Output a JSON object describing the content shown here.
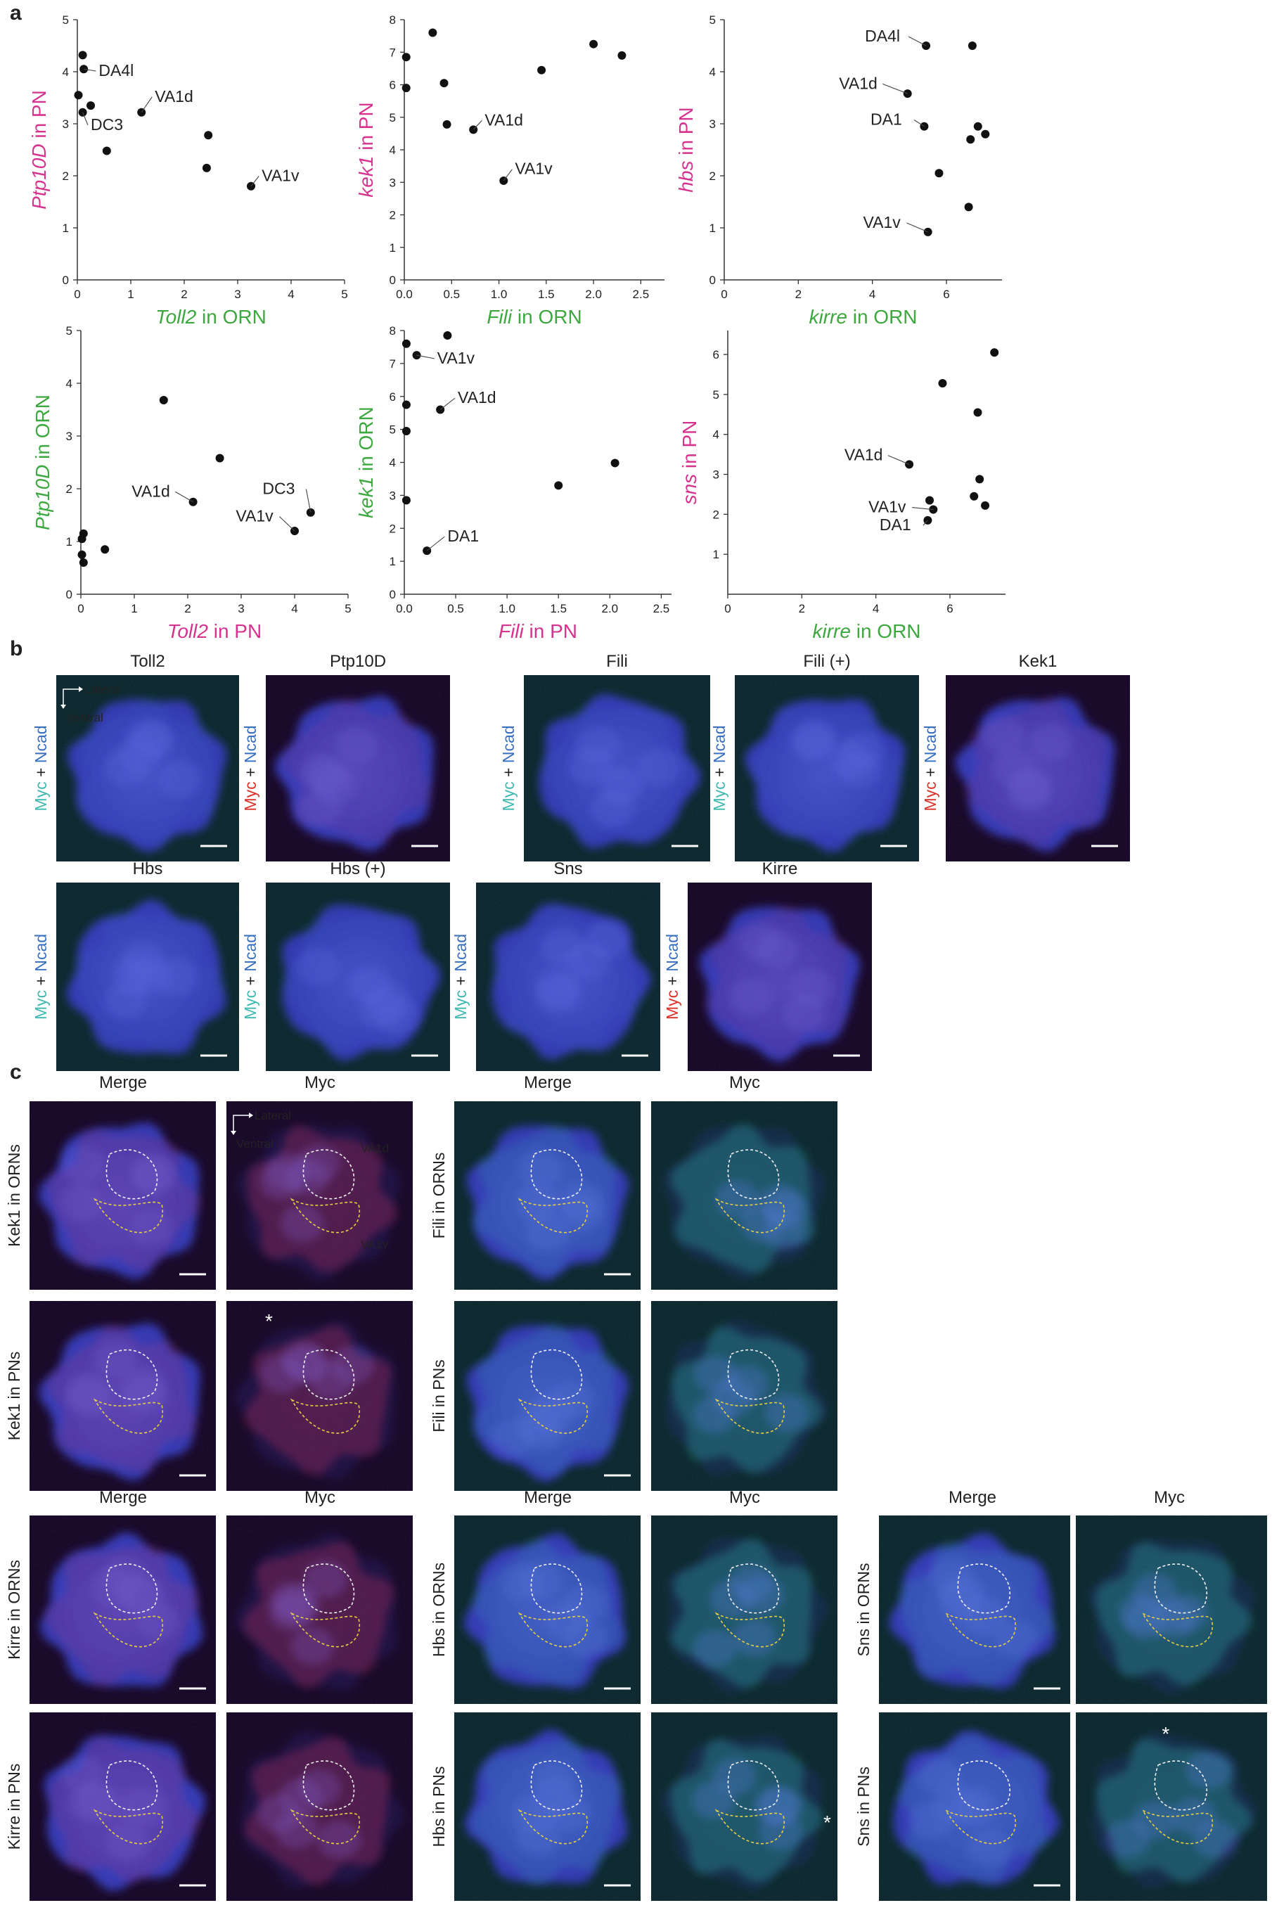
{
  "panels": {
    "a": "a",
    "b": "b",
    "c": "c"
  },
  "colors": {
    "pn": "#d6338f",
    "orn": "#3da83f",
    "myc_cyan": "#3fb8b0",
    "myc_red": "#d8322a",
    "ncad": "#3a6fbf",
    "dark": "#222222"
  },
  "scatter_plots": [
    {
      "id": "toll2-orn-ptp10d-pn",
      "xlabel": {
        "gene": "Toll2",
        "suffix": " in ORN",
        "color": "orn"
      },
      "ylabel": {
        "gene": "Ptp10D",
        "suffix": " in PN",
        "color": "pn"
      },
      "xlim": [
        0,
        5
      ],
      "ylim": [
        0,
        5
      ],
      "xticks": [
        "0",
        "1",
        "2",
        "3",
        "4",
        "5"
      ],
      "yticks": [
        "0",
        "1",
        "2",
        "3",
        "4",
        "5"
      ],
      "points": [
        [
          0.1,
          4.32
        ],
        [
          0.12,
          4.05
        ],
        [
          0.02,
          3.55
        ],
        [
          0.25,
          3.35
        ],
        [
          0.1,
          3.22
        ],
        [
          1.2,
          3.22
        ],
        [
          0.55,
          2.48
        ],
        [
          2.45,
          2.78
        ],
        [
          2.42,
          2.15
        ],
        [
          3.25,
          1.8
        ]
      ],
      "labels": [
        {
          "text": "DA4l",
          "pt": 1,
          "tx": 0.4,
          "ty": 3.92
        },
        {
          "text": "VA1d",
          "pt": 5,
          "tx": 1.45,
          "ty": 3.42
        },
        {
          "text": "DC3",
          "pt": 4,
          "tx": 0.25,
          "ty": 2.88
        },
        {
          "text": "VA1v",
          "pt": 9,
          "tx": 3.45,
          "ty": 1.9
        }
      ]
    },
    {
      "id": "fili-orn-kek1-pn",
      "xlabel": {
        "gene": "Fili",
        "suffix": " in ORN",
        "color": "orn"
      },
      "ylabel": {
        "gene": "kek1",
        "suffix": " in PN",
        "color": "pn"
      },
      "xlim": [
        0,
        2.75
      ],
      "ylim": [
        0,
        8
      ],
      "xticks": [
        "0.0",
        "0.5",
        "1.0",
        "1.5",
        "2.0",
        "2.5"
      ],
      "yticks": [
        "0",
        "1",
        "2",
        "3",
        "4",
        "5",
        "6",
        "7",
        "8"
      ],
      "points": [
        [
          0.02,
          6.85
        ],
        [
          0.3,
          7.6
        ],
        [
          0.02,
          5.9
        ],
        [
          0.42,
          6.05
        ],
        [
          0.45,
          4.78
        ],
        [
          0.73,
          4.62
        ],
        [
          1.45,
          6.45
        ],
        [
          2.0,
          7.25
        ],
        [
          2.3,
          6.9
        ],
        [
          1.05,
          3.05
        ]
      ],
      "labels": [
        {
          "text": "VA1d",
          "pt": 5,
          "tx": 0.85,
          "ty": 4.75
        },
        {
          "text": "VA1v",
          "pt": 9,
          "tx": 1.17,
          "ty": 3.25
        }
      ]
    },
    {
      "id": "kirre-orn-hbs-pn",
      "xlabel": {
        "gene": "kirre",
        "suffix": " in ORN",
        "color": "orn"
      },
      "ylabel": {
        "gene": "hbs",
        "suffix": " in PN",
        "color": "pn"
      },
      "xlim": [
        0,
        7.5
      ],
      "ylim": [
        0,
        5
      ],
      "xticks": [
        "0",
        "2",
        "4",
        "6"
      ],
      "yticks": [
        "0",
        "1",
        "2",
        "3",
        "4",
        "5"
      ],
      "points": [
        [
          5.45,
          4.5
        ],
        [
          6.7,
          4.5
        ],
        [
          4.95,
          3.58
        ],
        [
          5.4,
          2.95
        ],
        [
          6.85,
          2.95
        ],
        [
          7.05,
          2.8
        ],
        [
          6.65,
          2.7
        ],
        [
          5.8,
          2.05
        ],
        [
          6.6,
          1.4
        ],
        [
          5.5,
          0.92
        ]
      ],
      "labels": [
        {
          "text": "DA4l",
          "pt": 0,
          "tx": 3.8,
          "ty": 4.58
        },
        {
          "text": "VA1d",
          "pt": 2,
          "tx": 3.1,
          "ty": 3.67
        },
        {
          "text": "DA1",
          "pt": 3,
          "tx": 3.95,
          "ty": 2.98
        },
        {
          "text": "VA1v",
          "pt": 9,
          "tx": 3.75,
          "ty": 1.0
        }
      ]
    },
    {
      "id": "toll2-pn-ptp10d-orn",
      "xlabel": {
        "gene": "Toll2",
        "suffix": " in PN",
        "color": "pn"
      },
      "ylabel": {
        "gene": "Ptp10D",
        "suffix": " in ORN",
        "color": "orn"
      },
      "xlim": [
        0,
        5
      ],
      "ylim": [
        0,
        5
      ],
      "xticks": [
        "0",
        "1",
        "2",
        "3",
        "4",
        "5"
      ],
      "yticks": [
        "0",
        "1",
        "2",
        "3",
        "4",
        "5"
      ],
      "points": [
        [
          1.55,
          3.68
        ],
        [
          2.6,
          2.58
        ],
        [
          2.1,
          1.75
        ],
        [
          4.3,
          1.55
        ],
        [
          4.0,
          1.2
        ],
        [
          0.02,
          1.05
        ],
        [
          0.05,
          1.15
        ],
        [
          0.45,
          0.85
        ],
        [
          0.02,
          0.75
        ],
        [
          0.05,
          0.6
        ]
      ],
      "labels": [
        {
          "text": "VA1d",
          "pt": 2,
          "tx": 0.95,
          "ty": 1.85
        },
        {
          "text": "DC3",
          "pt": 3,
          "tx": 3.4,
          "ty": 1.9
        },
        {
          "text": "VA1v",
          "pt": 4,
          "tx": 2.9,
          "ty": 1.38
        }
      ]
    },
    {
      "id": "fili-pn-kek1-orn",
      "xlabel": {
        "gene": "Fili",
        "suffix": " in PN",
        "color": "pn"
      },
      "ylabel": {
        "gene": "kek1",
        "suffix": " in ORN",
        "color": "orn"
      },
      "xlim": [
        0,
        2.6
      ],
      "ylim": [
        0,
        8
      ],
      "xticks": [
        "0.0",
        "0.5",
        "1.0",
        "1.5",
        "2.0",
        "2.5"
      ],
      "yticks": [
        "0",
        "1",
        "2",
        "3",
        "4",
        "5",
        "6",
        "7",
        "8"
      ],
      "points": [
        [
          0.02,
          7.6
        ],
        [
          0.42,
          7.85
        ],
        [
          0.12,
          7.25
        ],
        [
          0.02,
          5.75
        ],
        [
          0.35,
          5.6
        ],
        [
          0.02,
          4.95
        ],
        [
          0.02,
          2.85
        ],
        [
          1.5,
          3.3
        ],
        [
          2.05,
          3.98
        ],
        [
          0.22,
          1.32
        ]
      ],
      "labels": [
        {
          "text": "VA1v",
          "pt": 2,
          "tx": 0.32,
          "ty": 7.0
        },
        {
          "text": "VA1d",
          "pt": 4,
          "tx": 0.52,
          "ty": 5.8
        },
        {
          "text": "DA1",
          "pt": 9,
          "tx": 0.42,
          "ty": 1.6
        }
      ]
    },
    {
      "id": "kirre-orn-sns-pn",
      "xlabel": {
        "gene": "kirre",
        "suffix": " in ORN",
        "color": "orn"
      },
      "ylabel": {
        "gene": "sns",
        "suffix": " in PN",
        "color": "pn"
      },
      "xlim": [
        0,
        7.5
      ],
      "ylim": [
        0,
        6.6
      ],
      "xticks": [
        "0",
        "2",
        "4",
        "6"
      ],
      "yticks": [
        "1",
        "2",
        "3",
        "4",
        "5",
        "6"
      ],
      "points": [
        [
          7.2,
          6.05
        ],
        [
          5.8,
          5.28
        ],
        [
          6.75,
          4.55
        ],
        [
          4.9,
          3.25
        ],
        [
          6.8,
          2.88
        ],
        [
          5.45,
          2.35
        ],
        [
          6.65,
          2.45
        ],
        [
          6.95,
          2.22
        ],
        [
          5.55,
          2.12
        ],
        [
          5.4,
          1.85
        ]
      ],
      "labels": [
        {
          "text": "VA1d",
          "pt": 3,
          "tx": 3.15,
          "ty": 3.35
        },
        {
          "text": "VA1v",
          "pt": 8,
          "tx": 3.8,
          "ty": 2.05
        },
        {
          "text": "DA1",
          "pt": 9,
          "tx": 4.1,
          "ty": 1.6
        }
      ]
    }
  ],
  "panel_b": {
    "orientation": {
      "lateral": "Lateral",
      "ventral": "Ventral"
    },
    "images": [
      {
        "title": "Toll2",
        "myc": "Myc",
        "plus": " + ",
        "ncad": "Ncad",
        "mycColor": "myc_cyan",
        "style": "cyan"
      },
      {
        "title": "Ptp10D",
        "myc": "Myc",
        "plus": " + ",
        "ncad": "Ncad",
        "mycColor": "myc_red",
        "style": "red"
      },
      {
        "title": "Fili",
        "myc": "Myc",
        "plus": " + ",
        "ncad": "Ncad",
        "mycColor": "myc_cyan",
        "style": "cyan"
      },
      {
        "title": "Fili (+)",
        "myc": "Myc",
        "plus": " + ",
        "ncad": "Ncad",
        "mycColor": "myc_cyan",
        "style": "cyan"
      },
      {
        "title": "Kek1",
        "myc": "Myc",
        "plus": " + ",
        "ncad": "Ncad",
        "mycColor": "myc_red",
        "style": "red"
      },
      {
        "title": "Hbs",
        "myc": "Myc",
        "plus": " + ",
        "ncad": "Ncad",
        "mycColor": "myc_cyan",
        "style": "cyan"
      },
      {
        "title": "Hbs (+)",
        "myc": "Myc",
        "plus": " + ",
        "ncad": "Ncad",
        "mycColor": "myc_cyan",
        "style": "cyan"
      },
      {
        "title": "Sns",
        "myc": "Myc",
        "plus": " + ",
        "ncad": "Ncad",
        "mycColor": "myc_cyan",
        "style": "cyan"
      },
      {
        "title": "Kirre",
        "myc": "Myc",
        "plus": " + ",
        "ncad": "Ncad",
        "mycColor": "myc_red",
        "style": "red"
      }
    ]
  },
  "panel_c": {
    "headers": {
      "merge": "Merge",
      "myc": "Myc"
    },
    "orientation": {
      "lateral": "Lateral",
      "ventral": "Ventral"
    },
    "glomeruli": {
      "va1d": "VA1d",
      "va1v": "VA1v"
    },
    "asterisk": "*",
    "rows": [
      {
        "label": "Kek1 in ORNs",
        "style": "red"
      },
      {
        "label": "Kek1 in PNs",
        "style": "red"
      },
      {
        "label": "Fili in ORNs",
        "style": "cyan"
      },
      {
        "label": "Fili in PNs",
        "style": "cyan"
      },
      {
        "label": "Kirre in ORNs",
        "style": "red"
      },
      {
        "label": "Kirre in PNs",
        "style": "red"
      },
      {
        "label": "Hbs in ORNs",
        "style": "cyan"
      },
      {
        "label": "Hbs in PNs",
        "style": "cyan"
      },
      {
        "label": "Sns in ORNs",
        "style": "cyan"
      },
      {
        "label": "Sns in PNs",
        "style": "cyan"
      }
    ]
  }
}
